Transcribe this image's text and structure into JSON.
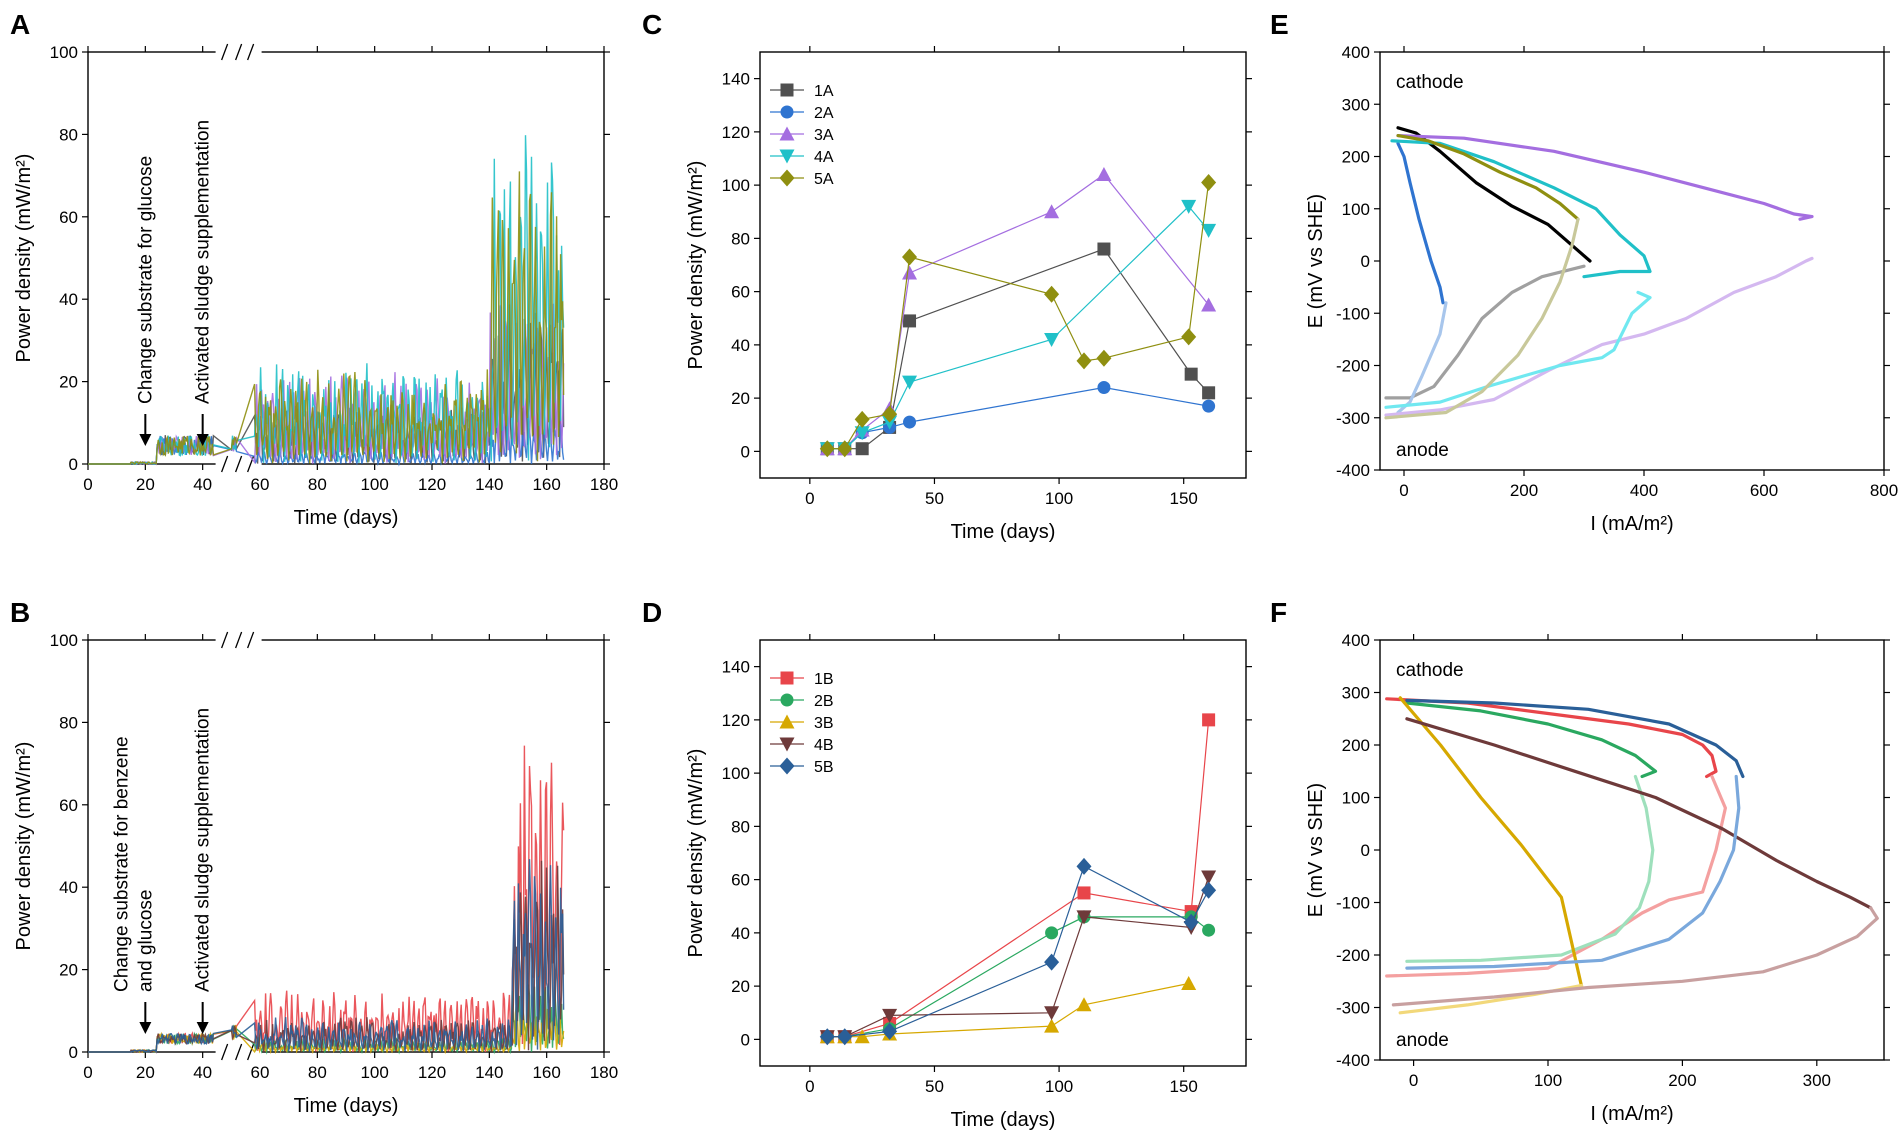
{
  "colors": {
    "1A": "#505050",
    "2A": "#2f74d0",
    "3A": "#a46ee0",
    "4A": "#20c0c8",
    "5A": "#8f8f10",
    "1B": "#e8454a",
    "2B": "#2aa860",
    "3B": "#d6a800",
    "4B": "#6e3a3a",
    "5B": "#2a5f98"
  },
  "chart_data": [
    {
      "id": "A",
      "panel": "A",
      "type": "scatter",
      "xlabel": "Time (days)",
      "ylabel": "Power density (mW/m²)",
      "xlim": [
        0,
        180
      ],
      "ylim": [
        0,
        100
      ],
      "x_ticks": [
        "0",
        "20",
        "40",
        "60",
        "80",
        "100",
        "120",
        "140",
        "160",
        "180"
      ],
      "y_ticks": [
        "0",
        "20",
        "40",
        "60",
        "80",
        "100"
      ],
      "axis_break": "between 40 and 60",
      "annotations": [
        {
          "text": "Change substrate for glucose",
          "x": 20
        },
        {
          "text": "Activated sludge supplementation",
          "x": 40
        }
      ],
      "series_names": [
        "1A",
        "2A",
        "3A",
        "4A",
        "5A"
      ],
      "peaks": {
        "1A": 47,
        "2A": 12,
        "3A": 45,
        "4A": 84,
        "5A": 78
      }
    },
    {
      "id": "B",
      "panel": "B",
      "type": "scatter",
      "xlabel": "Time (days)",
      "ylabel": "Power density (mW/m²)",
      "xlim": [
        0,
        180
      ],
      "ylim": [
        0,
        100
      ],
      "x_ticks": [
        "0",
        "20",
        "40",
        "60",
        "80",
        "100",
        "120",
        "140",
        "160",
        "180"
      ],
      "y_ticks": [
        "0",
        "20",
        "40",
        "60",
        "80",
        "100"
      ],
      "axis_break": "between 40 and 60",
      "annotations": [
        {
          "text": "Change substrate for benzene",
          "text2": "and  glucose",
          "x": 20
        },
        {
          "text": "Activated sludge supplementation",
          "x": 40
        }
      ],
      "series_names": [
        "1B",
        "2B",
        "3B",
        "4B",
        "5B"
      ],
      "peaks": {
        "1B": 85,
        "2B": 20,
        "3B": 15,
        "4B": 48,
        "5B": 48
      }
    },
    {
      "id": "C",
      "panel": "C",
      "type": "line",
      "xlabel": "Time (days)",
      "ylabel": "Power density (mW/m²)",
      "xlim": [
        -20,
        175
      ],
      "ylim": [
        -10,
        150
      ],
      "x_ticks": [
        0,
        50,
        100,
        150
      ],
      "y_ticks": [
        0,
        20,
        40,
        60,
        80,
        100,
        120,
        140
      ],
      "legend_position": "top-left",
      "series": [
        {
          "name": "1A",
          "marker": "square",
          "x": [
            7,
            14,
            21,
            32,
            40,
            118,
            153,
            160
          ],
          "y": [
            1,
            1,
            1,
            9,
            49,
            76,
            29,
            22
          ]
        },
        {
          "name": "2A",
          "marker": "circle",
          "x": [
            7,
            14,
            21,
            32,
            40,
            118,
            160
          ],
          "y": [
            1,
            1,
            7,
            9,
            11,
            24,
            17
          ]
        },
        {
          "name": "3A",
          "marker": "triangle-up",
          "x": [
            7,
            14,
            21,
            32,
            40,
            97,
            118,
            160
          ],
          "y": [
            1,
            1,
            8,
            16,
            67,
            90,
            104,
            55
          ]
        },
        {
          "name": "4A",
          "marker": "triangle-down",
          "x": [
            7,
            14,
            21,
            32,
            40,
            97,
            152,
            160
          ],
          "y": [
            1,
            1,
            7,
            11,
            26,
            42,
            92,
            83
          ]
        },
        {
          "name": "5A",
          "marker": "diamond",
          "x": [
            7,
            14,
            21,
            32,
            40,
            97,
            110,
            118,
            152,
            160
          ],
          "y": [
            1,
            1,
            12,
            14,
            73,
            59,
            34,
            35,
            43,
            101
          ]
        }
      ]
    },
    {
      "id": "D",
      "panel": "D",
      "type": "line",
      "xlabel": "Time (days)",
      "ylabel": "Power density (mW/m²)",
      "xlim": [
        -20,
        175
      ],
      "ylim": [
        -10,
        150
      ],
      "x_ticks": [
        0,
        50,
        100,
        150
      ],
      "y_ticks": [
        0,
        20,
        40,
        60,
        80,
        100,
        120,
        140
      ],
      "legend_position": "top-left",
      "series": [
        {
          "name": "1B",
          "marker": "square",
          "x": [
            7,
            14,
            32,
            110,
            153,
            160
          ],
          "y": [
            1,
            1,
            6,
            55,
            48,
            120
          ]
        },
        {
          "name": "2B",
          "marker": "circle",
          "x": [
            7,
            14,
            32,
            97,
            110,
            153,
            160
          ],
          "y": [
            1,
            1,
            4,
            40,
            46,
            46,
            41
          ]
        },
        {
          "name": "3B",
          "marker": "triangle-up",
          "x": [
            7,
            14,
            21,
            32,
            97,
            110,
            152
          ],
          "y": [
            1,
            1,
            1,
            2,
            5,
            13,
            21
          ]
        },
        {
          "name": "4B",
          "marker": "triangle-down",
          "x": [
            7,
            14,
            32,
            97,
            110,
            153,
            160
          ],
          "y": [
            1,
            1,
            9,
            10,
            46,
            42,
            61
          ]
        },
        {
          "name": "5B",
          "marker": "diamond",
          "x": [
            7,
            14,
            32,
            97,
            110,
            153,
            160
          ],
          "y": [
            1,
            1,
            3,
            29,
            65,
            44,
            56
          ]
        }
      ]
    },
    {
      "id": "E",
      "panel": "E",
      "type": "line",
      "xlabel": "I (mA/m²)",
      "ylabel": "E (mV vs SHE)",
      "xlim": [
        -40,
        800
      ],
      "ylim": [
        -400,
        400
      ],
      "x_ticks": [
        0,
        200,
        400,
        600,
        800
      ],
      "y_ticks": [
        -400,
        -300,
        -200,
        -100,
        0,
        100,
        200,
        300,
        400
      ],
      "text_labels": [
        "cathode",
        "anode"
      ],
      "series": [
        {
          "name": "1A cathode",
          "color": "#000000",
          "x": [
            -10,
            20,
            60,
            120,
            180,
            240,
            280,
            310
          ],
          "y": [
            255,
            245,
            210,
            150,
            105,
            70,
            30,
            0
          ]
        },
        {
          "name": "1A anode",
          "color": "#a0a0a0",
          "x": [
            -30,
            10,
            50,
            90,
            130,
            180,
            230,
            300
          ],
          "y": [
            -262,
            -262,
            -240,
            -180,
            -110,
            -60,
            -30,
            -10
          ]
        },
        {
          "name": "2A cathode",
          "color": "#2f74d0",
          "x": [
            -10,
            0,
            10,
            25,
            45,
            60,
            65
          ],
          "y": [
            225,
            200,
            150,
            80,
            0,
            -50,
            -80
          ]
        },
        {
          "name": "2A anode",
          "color": "#a8c6ec",
          "x": [
            -10,
            10,
            30,
            60,
            70
          ],
          "y": [
            -290,
            -270,
            -220,
            -140,
            -80
          ]
        },
        {
          "name": "3A cathode",
          "color": "#a46ee0",
          "x": [
            -10,
            100,
            250,
            400,
            500,
            600,
            650,
            680,
            660
          ],
          "y": [
            240,
            235,
            210,
            170,
            140,
            110,
            90,
            85,
            80
          ]
        },
        {
          "name": "3A anode",
          "color": "#d4b8f0",
          "x": [
            -30,
            60,
            150,
            240,
            330,
            400,
            470,
            550,
            620,
            670,
            680
          ],
          "y": [
            -295,
            -285,
            -265,
            -210,
            -160,
            -140,
            -110,
            -60,
            -30,
            0,
            5
          ]
        },
        {
          "name": "4A cathode",
          "color": "#20c0c8",
          "x": [
            -20,
            60,
            150,
            250,
            320,
            360,
            400,
            410,
            360,
            300
          ],
          "y": [
            230,
            225,
            190,
            140,
            100,
            50,
            10,
            -20,
            -20,
            -30
          ]
        },
        {
          "name": "4A anode",
          "color": "#70e8f0",
          "x": [
            -30,
            60,
            140,
            200,
            260,
            330,
            350,
            380,
            410,
            390
          ],
          "y": [
            -280,
            -270,
            -240,
            -220,
            -200,
            -185,
            -170,
            -100,
            -70,
            -60
          ]
        },
        {
          "name": "5A cathode",
          "color": "#8f8f10",
          "x": [
            -10,
            40,
            100,
            160,
            220,
            260,
            290
          ],
          "y": [
            240,
            230,
            205,
            170,
            140,
            110,
            80
          ]
        },
        {
          "name": "5A anode",
          "color": "#c8c89a",
          "x": [
            -30,
            70,
            130,
            190,
            230,
            260,
            280,
            290
          ],
          "y": [
            -300,
            -290,
            -250,
            -180,
            -110,
            -40,
            30,
            80
          ]
        }
      ]
    },
    {
      "id": "F",
      "panel": "F",
      "type": "line",
      "xlabel": "I (mA/m²)",
      "ylabel": "E (mV vs SHE)",
      "xlim": [
        -25,
        350
      ],
      "ylim": [
        -400,
        400
      ],
      "x_ticks": [
        0,
        100,
        200,
        300
      ],
      "y_ticks": [
        -400,
        -300,
        -200,
        -100,
        0,
        100,
        200,
        300,
        400
      ],
      "text_labels": [
        "cathode",
        "anode"
      ],
      "series": [
        {
          "name": "1B cathode",
          "color": "#e8454a",
          "x": [
            -20,
            40,
            100,
            160,
            200,
            215,
            222,
            225,
            218
          ],
          "y": [
            288,
            280,
            260,
            240,
            220,
            200,
            180,
            150,
            140
          ]
        },
        {
          "name": "1B anode",
          "color": "#f4a0a0",
          "x": [
            -20,
            40,
            100,
            140,
            170,
            190,
            215,
            225,
            232,
            222
          ],
          "y": [
            -240,
            -235,
            -225,
            -170,
            -120,
            -95,
            -80,
            0,
            80,
            140
          ]
        },
        {
          "name": "2B cathode",
          "color": "#2aa860",
          "x": [
            -5,
            50,
            100,
            140,
            165,
            180,
            170
          ],
          "y": [
            280,
            265,
            240,
            210,
            180,
            150,
            140
          ]
        },
        {
          "name": "2B anode",
          "color": "#9ee0bc",
          "x": [
            -5,
            50,
            110,
            150,
            168,
            175,
            178,
            173,
            165
          ],
          "y": [
            -212,
            -210,
            -200,
            -160,
            -110,
            -60,
            0,
            80,
            140
          ]
        },
        {
          "name": "3B cathode",
          "color": "#d6a800",
          "x": [
            -10,
            20,
            50,
            80,
            110,
            125
          ],
          "y": [
            290,
            200,
            100,
            10,
            -90,
            -260
          ]
        },
        {
          "name": "3B anode",
          "color": "#f2d87a",
          "x": [
            -10,
            40,
            90,
            125
          ],
          "y": [
            -310,
            -295,
            -275,
            -258
          ]
        },
        {
          "name": "4B cathode",
          "color": "#6e3a3a",
          "x": [
            -5,
            60,
            120,
            180,
            230,
            270,
            300,
            325,
            340
          ],
          "y": [
            250,
            200,
            150,
            100,
            40,
            -20,
            -60,
            -90,
            -110
          ]
        },
        {
          "name": "4B anode",
          "color": "#c8a0a0",
          "x": [
            -15,
            60,
            130,
            200,
            260,
            300,
            330,
            345,
            340
          ],
          "y": [
            -295,
            -280,
            -262,
            -250,
            -232,
            -200,
            -165,
            -130,
            -110
          ]
        },
        {
          "name": "5B cathode",
          "color": "#2a5f98",
          "x": [
            -5,
            60,
            130,
            190,
            225,
            240,
            245
          ],
          "y": [
            285,
            280,
            268,
            240,
            200,
            170,
            140
          ]
        },
        {
          "name": "5B anode",
          "color": "#7aa8dc",
          "x": [
            -5,
            60,
            140,
            190,
            215,
            228,
            238,
            242,
            240
          ],
          "y": [
            -225,
            -222,
            -210,
            -170,
            -120,
            -60,
            0,
            80,
            140
          ]
        }
      ]
    }
  ]
}
